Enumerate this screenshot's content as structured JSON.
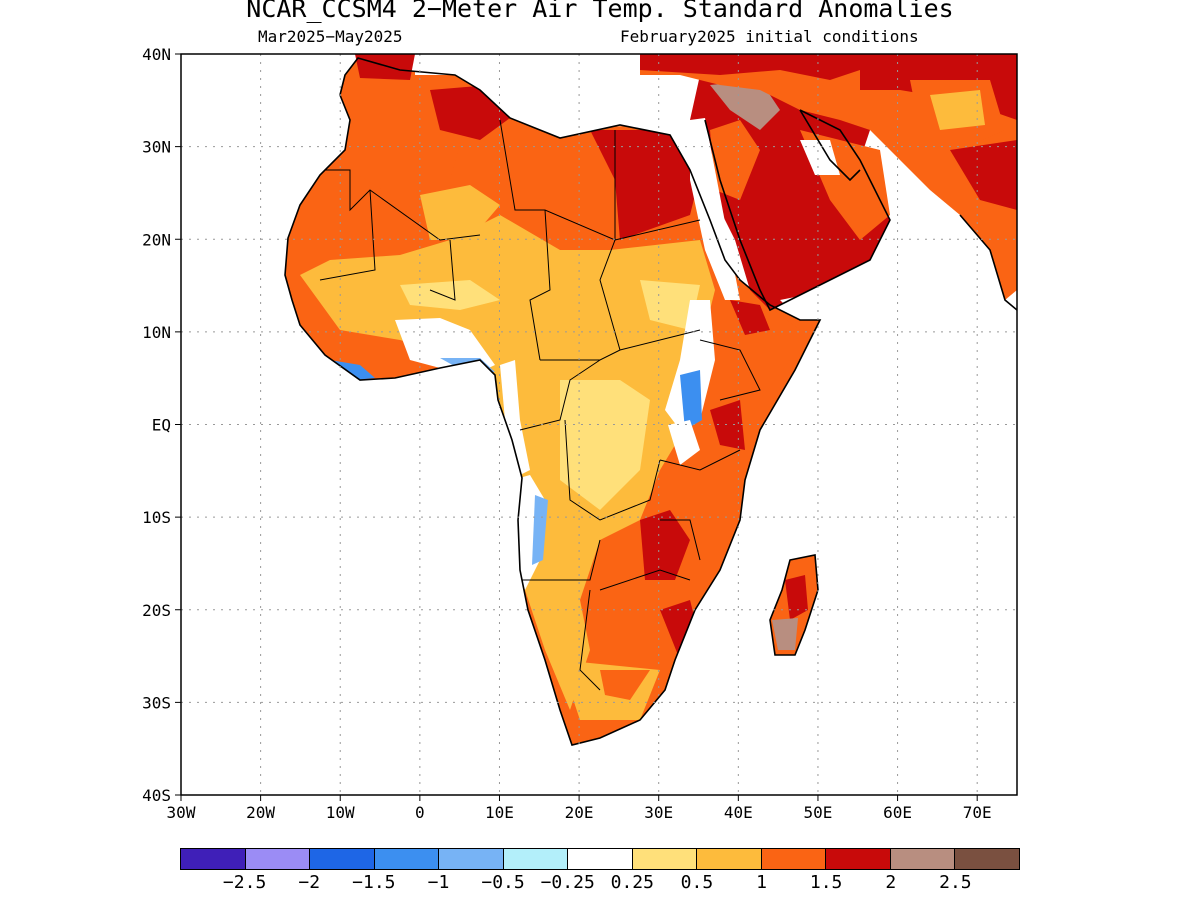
{
  "title": "NCAR_CCSM4 2−Meter Air Temp. Standard Anomalies",
  "period": "Mar2025−May2025",
  "initial_conditions": "February2025 initial conditions",
  "map": {
    "lon_range": [
      -30,
      75
    ],
    "lat_range": [
      -40,
      40
    ],
    "lat_ticks": [
      {
        "lat": 40,
        "label": "40N"
      },
      {
        "lat": 30,
        "label": "30N"
      },
      {
        "lat": 20,
        "label": "20N"
      },
      {
        "lat": 10,
        "label": "10N"
      },
      {
        "lat": 0,
        "label": "EQ"
      },
      {
        "lat": -10,
        "label": "10S"
      },
      {
        "lat": -20,
        "label": "20S"
      },
      {
        "lat": -30,
        "label": "30S"
      },
      {
        "lat": -40,
        "label": "40S"
      }
    ],
    "lon_ticks": [
      {
        "lon": -30,
        "label": "30W"
      },
      {
        "lon": -20,
        "label": "20W"
      },
      {
        "lon": -10,
        "label": "10W"
      },
      {
        "lon": 0,
        "label": "0"
      },
      {
        "lon": 10,
        "label": "10E"
      },
      {
        "lon": 20,
        "label": "20E"
      },
      {
        "lon": 30,
        "label": "30E"
      },
      {
        "lon": 40,
        "label": "40E"
      },
      {
        "lon": 50,
        "label": "50E"
      },
      {
        "lon": 60,
        "label": "60E"
      },
      {
        "lon": 70,
        "label": "70E"
      }
    ],
    "grid": true
  },
  "colorbar": {
    "colors": [
      "#3f1fb8",
      "#9b8cf5",
      "#1e66e6",
      "#3c8ff0",
      "#77b3f5",
      "#b3effa",
      "#ffffff",
      "#ffe07a",
      "#fdbb3c",
      "#fa6414",
      "#c80a0a",
      "#b88e80",
      "#7a5040"
    ],
    "labels": [
      "−2.5",
      "−2",
      "−1.5",
      "−1",
      "−0.5",
      "−0.25",
      "0.25",
      "0.5",
      "1",
      "1.5",
      "2",
      "2.5"
    ]
  }
}
